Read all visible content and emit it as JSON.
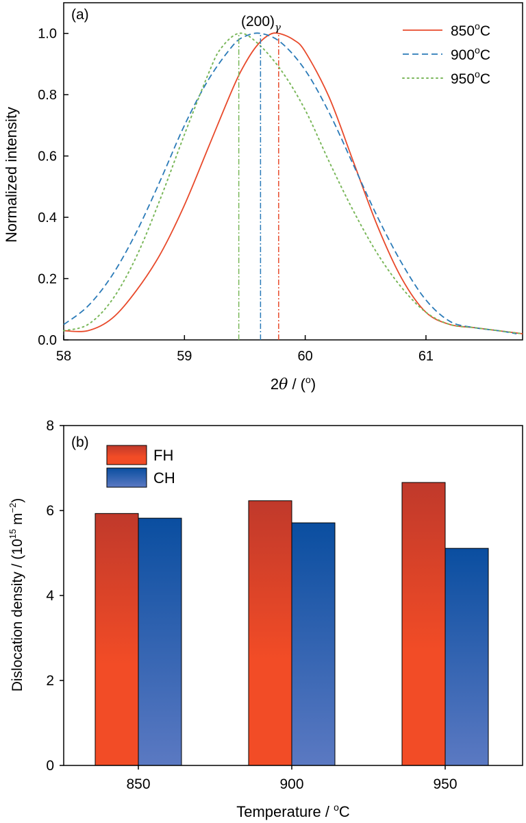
{
  "chart_data": [
    {
      "type": "line",
      "panel_label": "(a)",
      "annotation": {
        "text": "(200)",
        "subscript": "γ"
      },
      "xlabel": {
        "prefix": "2",
        "symbol": "θ",
        "suffix": " / (",
        "sup": "o",
        "close": ")"
      },
      "ylabel": "Normalized intensity",
      "xlim": [
        58,
        61.8
      ],
      "ylim": [
        0,
        1.1
      ],
      "xticks": [
        "58",
        "59",
        "60",
        "61"
      ],
      "yticks": [
        "0.0",
        "0.2",
        "0.4",
        "0.6",
        "0.8",
        "1.0"
      ],
      "legend_position": "top-right",
      "series": [
        {
          "name": "850",
          "name_sup": "o",
          "name_unit": "C",
          "color": "#e8492a",
          "dash": "solid",
          "peak": 59.78,
          "x": [
            58.0,
            58.2,
            58.4,
            58.6,
            58.8,
            59.0,
            59.2,
            59.4,
            59.5,
            59.6,
            59.7,
            59.78,
            59.9,
            60.0,
            60.2,
            60.4,
            60.6,
            60.8,
            61.0,
            61.2,
            61.4,
            61.6,
            61.8
          ],
          "y": [
            0.03,
            0.03,
            0.07,
            0.16,
            0.28,
            0.44,
            0.63,
            0.82,
            0.9,
            0.96,
            0.995,
            1.0,
            0.98,
            0.94,
            0.79,
            0.58,
            0.37,
            0.2,
            0.09,
            0.05,
            0.04,
            0.03,
            0.02
          ]
        },
        {
          "name": "900",
          "name_sup": "o",
          "name_unit": "C",
          "color": "#2a7ab8",
          "dash": "dashed",
          "peak": 59.63,
          "x": [
            58.0,
            58.2,
            58.4,
            58.6,
            58.8,
            59.0,
            59.2,
            59.4,
            59.5,
            59.63,
            59.8,
            60.0,
            60.2,
            60.4,
            60.6,
            60.8,
            61.0,
            61.2,
            61.4,
            61.6,
            61.75
          ],
          "y": [
            0.05,
            0.11,
            0.21,
            0.35,
            0.52,
            0.7,
            0.85,
            0.96,
            0.99,
            1.0,
            0.97,
            0.88,
            0.74,
            0.57,
            0.4,
            0.25,
            0.13,
            0.06,
            0.04,
            0.03,
            0.02
          ]
        },
        {
          "name": "950",
          "name_sup": "o",
          "name_unit": "C",
          "color": "#7ab75a",
          "dash": "dotted",
          "peak": 59.45,
          "x": [
            58.0,
            58.2,
            58.4,
            58.6,
            58.8,
            59.0,
            59.2,
            59.3,
            59.45,
            59.6,
            59.8,
            60.0,
            60.2,
            60.4,
            60.6,
            60.8,
            61.0,
            61.2,
            61.4,
            61.6,
            61.8
          ],
          "y": [
            0.03,
            0.05,
            0.13,
            0.27,
            0.46,
            0.67,
            0.87,
            0.95,
            1.0,
            0.97,
            0.88,
            0.75,
            0.58,
            0.42,
            0.28,
            0.17,
            0.09,
            0.05,
            0.04,
            0.03,
            0.02
          ]
        }
      ]
    },
    {
      "type": "bar",
      "panel_label": "(b)",
      "xlabel": {
        "text": "Temperature / ",
        "sup": "o",
        "suffix": "C"
      },
      "ylabel": {
        "text": "Dislocation density / (10",
        "sup": "15",
        "mid": " m",
        "sup2": "−2",
        "close": ")"
      },
      "categories": [
        "850",
        "900",
        "950"
      ],
      "ylim": [
        0,
        8
      ],
      "yticks": [
        "0",
        "2",
        "4",
        "6",
        "8"
      ],
      "legend_position": "top-left",
      "series": [
        {
          "name": "FH",
          "color_top": "#c0392b",
          "color_bottom": "#f24c26",
          "values": [
            5.93,
            6.23,
            6.66
          ]
        },
        {
          "name": "CH",
          "color_top": "#0a4ea0",
          "color_bottom": "#5b79c2",
          "values": [
            5.82,
            5.71,
            5.11
          ]
        }
      ]
    }
  ]
}
